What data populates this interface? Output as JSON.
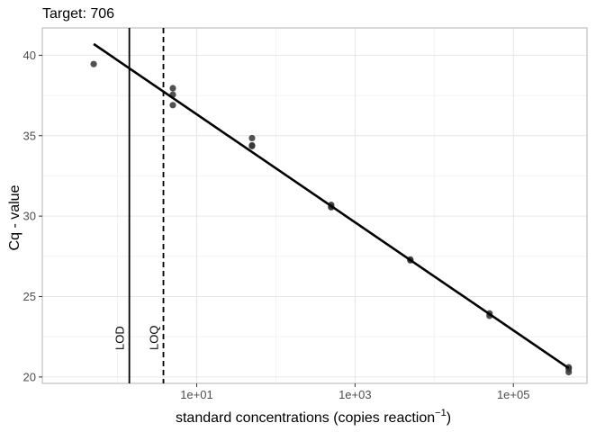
{
  "chart_data": {
    "type": "scatter",
    "title": "Target: 706",
    "xlabel_main": "standard concentrations (copies reaction",
    "xlabel_sup": "−1",
    "xlabel_close": ")",
    "ylabel": "Cq - value",
    "x_scale": "log10",
    "xlim_log10": [
      -0.95,
      5.93
    ],
    "ylim": [
      19.6,
      41.7
    ],
    "x_ticks": [
      {
        "label": "1e+01",
        "log10": 1
      },
      {
        "label": "1e+03",
        "log10": 3
      },
      {
        "label": "1e+05",
        "log10": 5
      }
    ],
    "y_ticks": [
      20,
      25,
      30,
      35,
      40
    ],
    "grid": true,
    "points": [
      {
        "x": 0.5,
        "y": 39.45
      },
      {
        "x": 5,
        "y": 37.95
      },
      {
        "x": 5,
        "y": 37.55
      },
      {
        "x": 5,
        "y": 36.9
      },
      {
        "x": 50,
        "y": 34.85
      },
      {
        "x": 50,
        "y": 34.35
      },
      {
        "x": 50,
        "y": 34.4
      },
      {
        "x": 500,
        "y": 30.7
      },
      {
        "x": 500,
        "y": 30.55
      },
      {
        "x": 500,
        "y": 30.6
      },
      {
        "x": 5000,
        "y": 27.3
      },
      {
        "x": 5000,
        "y": 27.25
      },
      {
        "x": 50000,
        "y": 23.95
      },
      {
        "x": 50000,
        "y": 23.8
      },
      {
        "x": 500000,
        "y": 20.6
      },
      {
        "x": 500000,
        "y": 20.3
      },
      {
        "x": 500000,
        "y": 20.5
      }
    ],
    "fit_line": {
      "x_start": 0.5,
      "y_start": 40.7,
      "x_end": 500000,
      "y_end": 20.55
    },
    "vertical_lines": [
      {
        "label": "LOD",
        "x": 1.41,
        "style": "solid"
      },
      {
        "label": "LOQ",
        "x": 3.8,
        "style": "dashed"
      }
    ],
    "colors": {
      "point": "#333333",
      "line": "#000000",
      "grid_major": "#e6e6e6",
      "grid_minor": "#f2f2f2",
      "panel_border": "#b3b3b3"
    }
  }
}
